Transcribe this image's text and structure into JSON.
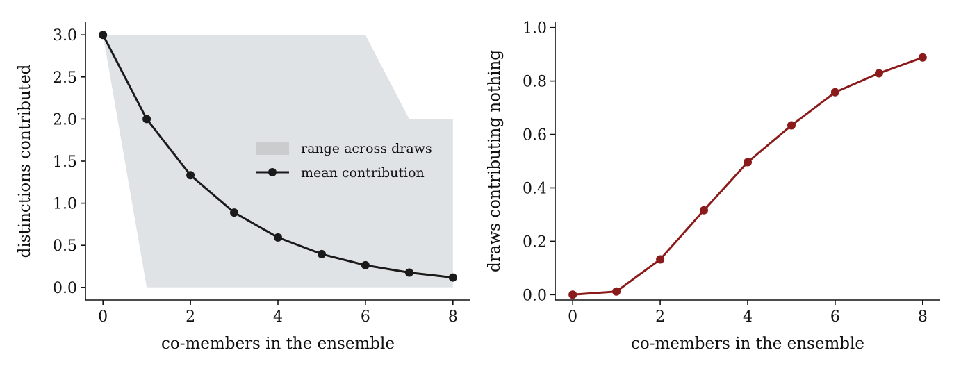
{
  "chart_data": [
    {
      "type": "line",
      "title": "",
      "xlabel": "co-members in the ensemble",
      "ylabel": "distinctions contributed",
      "xlim": [
        -0.4,
        8.4
      ],
      "ylim": [
        -0.15,
        3.15
      ],
      "x_ticks": [
        0,
        2,
        4,
        6,
        8
      ],
      "y_ticks": [
        0.0,
        0.5,
        1.0,
        1.5,
        2.0,
        2.5,
        3.0
      ],
      "x_tick_labels": [
        "0",
        "2",
        "4",
        "6",
        "8"
      ],
      "y_tick_labels": [
        "0.0",
        "0.5",
        "1.0",
        "1.5",
        "2.0",
        "2.5",
        "3.0"
      ],
      "grid": false,
      "legend_placement": "center-right",
      "x": [
        0,
        1,
        2,
        3,
        4,
        5,
        6,
        7,
        8
      ],
      "series": [
        {
          "name": "mean contribution",
          "values": [
            3.0,
            2.0,
            1.333,
            0.889,
            0.593,
            0.395,
            0.263,
            0.176,
            0.117
          ],
          "color": "#1a1a1a",
          "marker": "circle"
        }
      ],
      "band": {
        "name": "range across draws",
        "lower": [
          3.0,
          0.0,
          0.0,
          0.0,
          0.0,
          0.0,
          0.0,
          0.0,
          0.0
        ],
        "upper": [
          3.0,
          3.0,
          3.0,
          3.0,
          3.0,
          3.0,
          3.0,
          2.0,
          2.0
        ],
        "color": "#e0e3e6"
      }
    },
    {
      "type": "line",
      "title": "",
      "xlabel": "co-members in the ensemble",
      "ylabel": "draws contributing nothing",
      "xlim": [
        -0.4,
        8.4
      ],
      "ylim": [
        -0.02,
        1.02
      ],
      "x_ticks": [
        0,
        2,
        4,
        6,
        8
      ],
      "y_ticks": [
        0.0,
        0.2,
        0.4,
        0.6,
        0.8,
        1.0
      ],
      "x_tick_labels": [
        "0",
        "2",
        "4",
        "6",
        "8"
      ],
      "y_tick_labels": [
        "0.0",
        "0.2",
        "0.4",
        "0.6",
        "0.8",
        "1.0"
      ],
      "grid": false,
      "x": [
        0,
        1,
        2,
        3,
        4,
        5,
        6,
        7,
        8
      ],
      "series": [
        {
          "values": [
            0.0,
            0.012,
            0.132,
            0.316,
            0.496,
            0.634,
            0.758,
            0.829,
            0.888
          ],
          "color": "#8b1a1a",
          "marker": "circle"
        }
      ]
    }
  ]
}
